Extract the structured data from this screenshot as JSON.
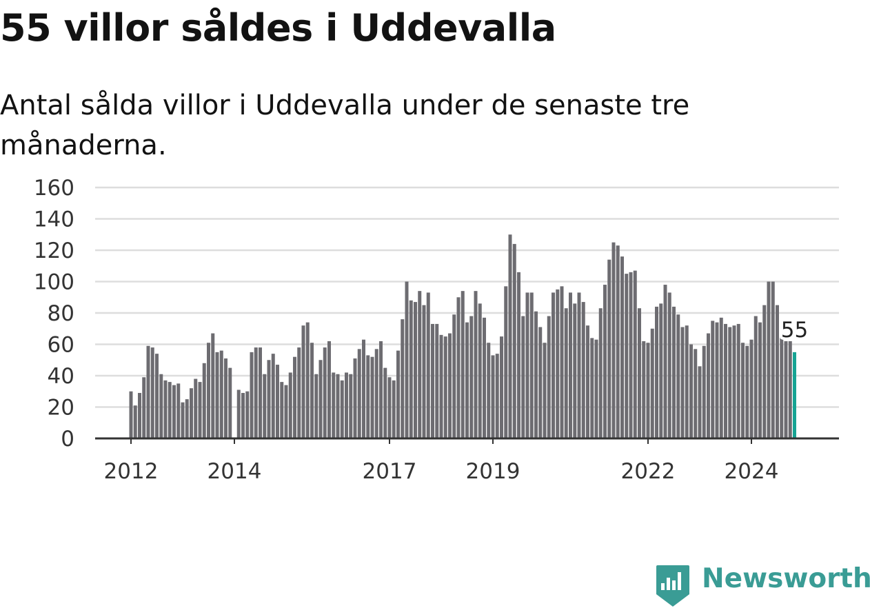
{
  "title": "55 villor såldes i Uddevalla",
  "subtitle": "Antal sålda villor i Uddevalla under de senaste tre månaderna.",
  "brand": {
    "name": "Newsworthy",
    "color": "#3a9c95",
    "icon": "bar-chart-badge-icon"
  },
  "colors": {
    "bar": "#6d6c71",
    "highlight": "#16a393",
    "grid": "#dddddd",
    "axis": "#333333"
  },
  "chart_data": {
    "type": "bar",
    "x_tick_labels": [
      "2012",
      "2014",
      "2017",
      "2019",
      "2022",
      "2024"
    ],
    "y_tick_labels": [
      "0",
      "20",
      "40",
      "60",
      "80",
      "100",
      "120",
      "140",
      "160"
    ],
    "ylim": [
      0,
      160
    ],
    "grid": true,
    "highlight_label": "55",
    "values": [
      30,
      21,
      29,
      39,
      59,
      58,
      54,
      41,
      37,
      36,
      34,
      35,
      23,
      25,
      32,
      38,
      36,
      48,
      61,
      67,
      55,
      56,
      51,
      45,
      null,
      31,
      29,
      30,
      55,
      58,
      58,
      41,
      50,
      54,
      47,
      36,
      34,
      42,
      52,
      58,
      72,
      74,
      61,
      41,
      50,
      58,
      62,
      42,
      41,
      37,
      42,
      41,
      51,
      57,
      63,
      53,
      52,
      57,
      62,
      45,
      39,
      37,
      56,
      76,
      100,
      88,
      87,
      94,
      85,
      93,
      73,
      73,
      66,
      65,
      67,
      79,
      90,
      94,
      74,
      78,
      94,
      86,
      77,
      61,
      53,
      54,
      65,
      97,
      130,
      124,
      106,
      78,
      93,
      93,
      81,
      71,
      61,
      78,
      93,
      95,
      97,
      83,
      93,
      86,
      93,
      87,
      72,
      64,
      63,
      83,
      98,
      114,
      125,
      123,
      116,
      105,
      106,
      107,
      83,
      62,
      61,
      70,
      84,
      86,
      98,
      93,
      84,
      79,
      71,
      72,
      60,
      57,
      46,
      59,
      67,
      75,
      74,
      77,
      73,
      71,
      72,
      73,
      61,
      59,
      63,
      78,
      74,
      85,
      100,
      100,
      85,
      65,
      62,
      62,
      55
    ]
  }
}
